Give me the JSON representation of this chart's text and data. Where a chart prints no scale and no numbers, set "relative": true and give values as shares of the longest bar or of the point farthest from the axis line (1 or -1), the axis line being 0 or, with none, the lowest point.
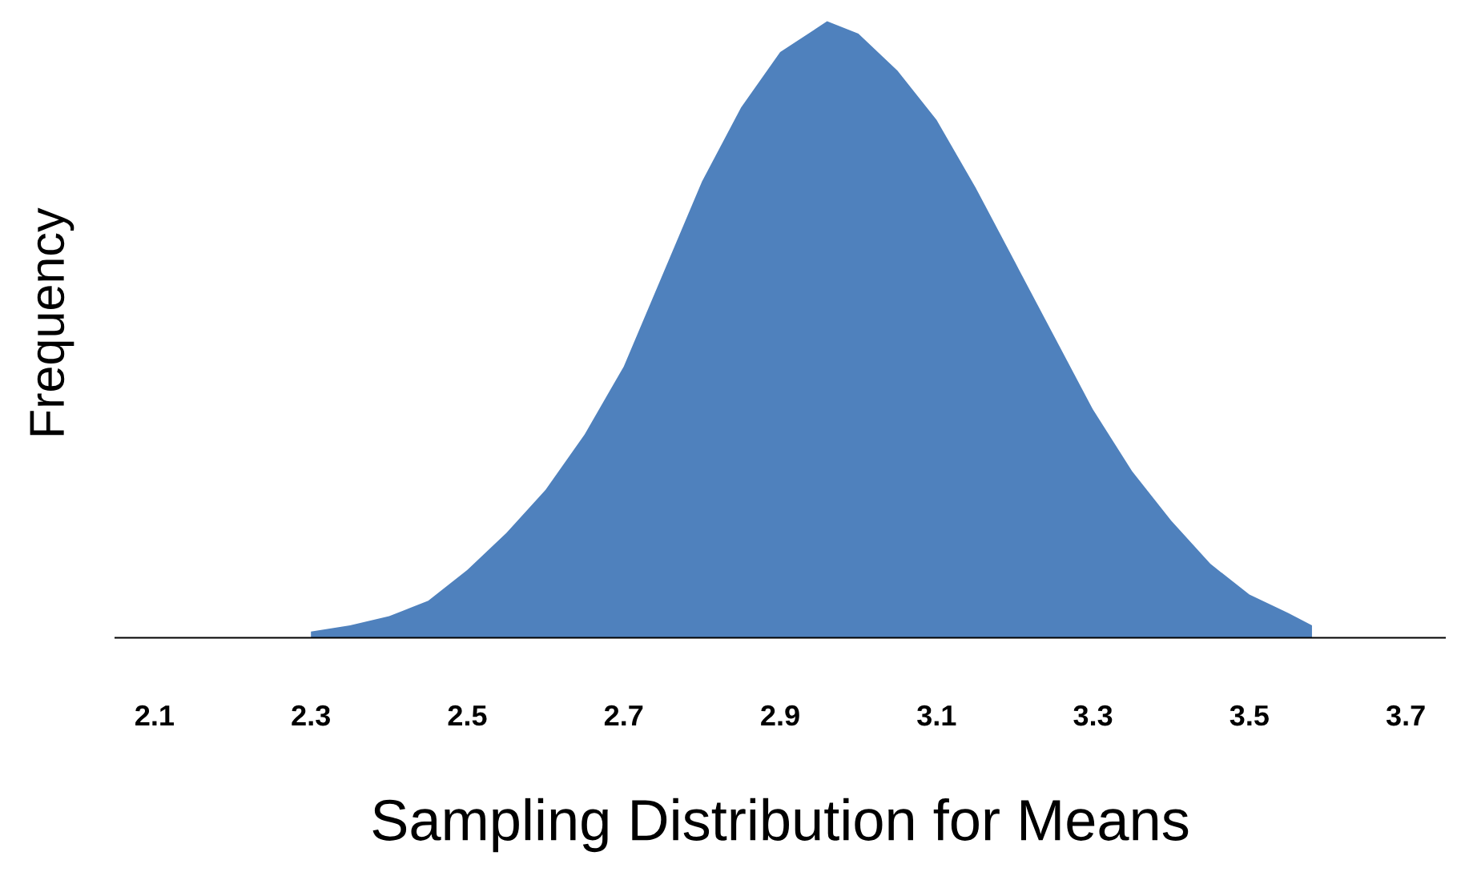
{
  "chart_data": {
    "type": "area",
    "xlabel": "Sampling Distribution for Means",
    "ylabel": "Frequency",
    "relative": true,
    "x": [
      2.3,
      2.35,
      2.4,
      2.45,
      2.5,
      2.55,
      2.6,
      2.65,
      2.7,
      2.75,
      2.8,
      2.85,
      2.9,
      2.96,
      3.0,
      3.05,
      3.1,
      3.15,
      3.2,
      3.25,
      3.3,
      3.35,
      3.4,
      3.45,
      3.5,
      3.55,
      3.58
    ],
    "series": [
      {
        "color": "#4f81bd",
        "values": [
          0.01,
          0.02,
          0.035,
          0.06,
          0.11,
          0.17,
          0.24,
          0.33,
          0.44,
          0.59,
          0.74,
          0.86,
          0.95,
          1.0,
          0.98,
          0.92,
          0.84,
          0.73,
          0.61,
          0.49,
          0.37,
          0.27,
          0.19,
          0.12,
          0.07,
          0.04,
          0.02
        ]
      }
    ],
    "xlim": [
      2.05,
      3.75
    ],
    "xticks": [
      2.1,
      2.3,
      2.5,
      2.7,
      2.9,
      3.1,
      3.3,
      3.5,
      3.7
    ],
    "grid": false,
    "legend": false
  }
}
